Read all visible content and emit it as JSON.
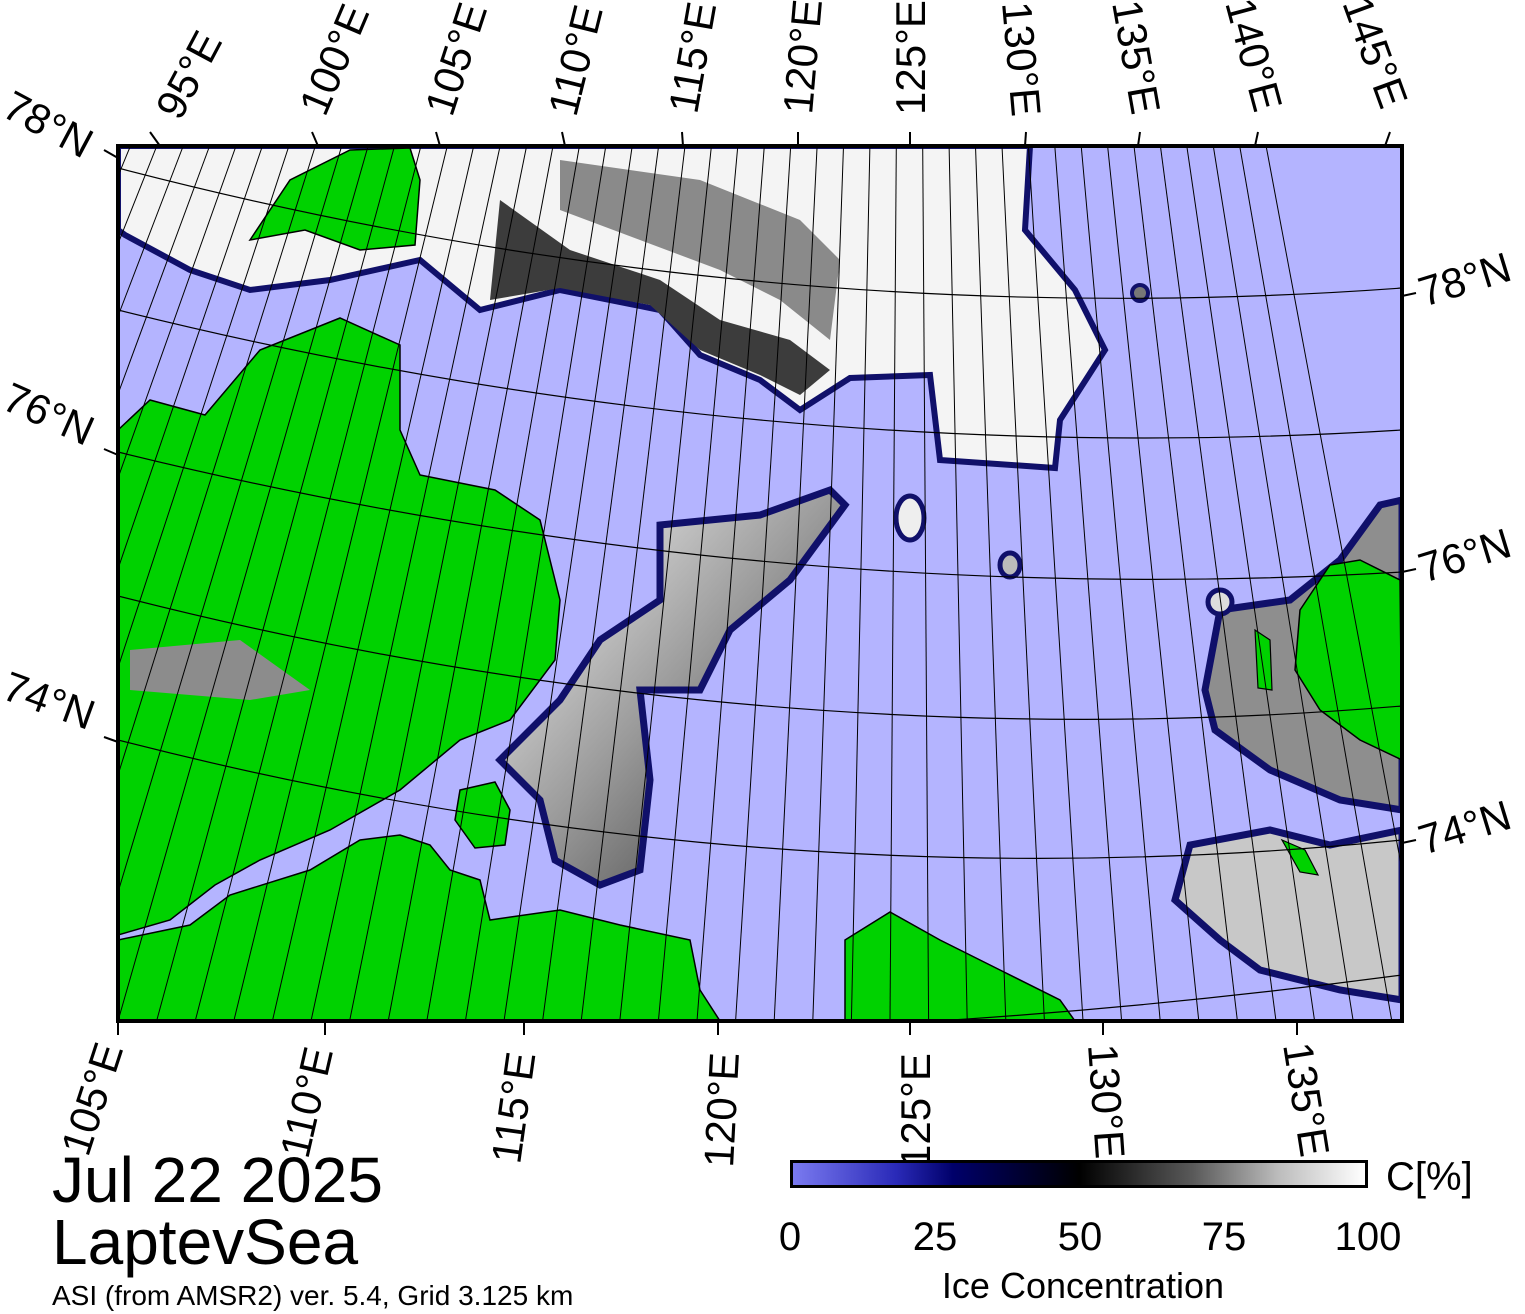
{
  "title": {
    "date": "Jul 22 2025",
    "region": "LaptevSea"
  },
  "source": "ASI (from AMSR2) ver. 5.4,  Grid 3.125 km",
  "colorbar": {
    "unit_label": "C[%]",
    "title": "Ice Concentration",
    "ticks": [
      "0",
      "25",
      "50",
      "75",
      "100"
    ],
    "range": [
      0,
      100
    ],
    "colors": {
      "low": "#7a7af0",
      "mid": "#000000",
      "high": "#ffffff"
    }
  },
  "map": {
    "projection": "polar stereographic",
    "top_longitude_labels": [
      "95°E",
      "100°E",
      "105°E",
      "110°E",
      "115°E",
      "120°E",
      "125°E",
      "130°E",
      "135°E",
      "140°E",
      "145°E"
    ],
    "bottom_longitude_labels": [
      "105°E",
      "110°E",
      "115°E",
      "120°E",
      "125°E",
      "130°E",
      "135°E"
    ],
    "left_latitude_labels": [
      "78°N",
      "76°N",
      "74°N"
    ],
    "right_latitude_labels": [
      "78°N",
      "76°N",
      "74°N"
    ],
    "colors": {
      "open_water": "#b4b4ff",
      "land": "#00d200",
      "land_ice": "#8c8c8c",
      "frame": "#000000"
    }
  }
}
